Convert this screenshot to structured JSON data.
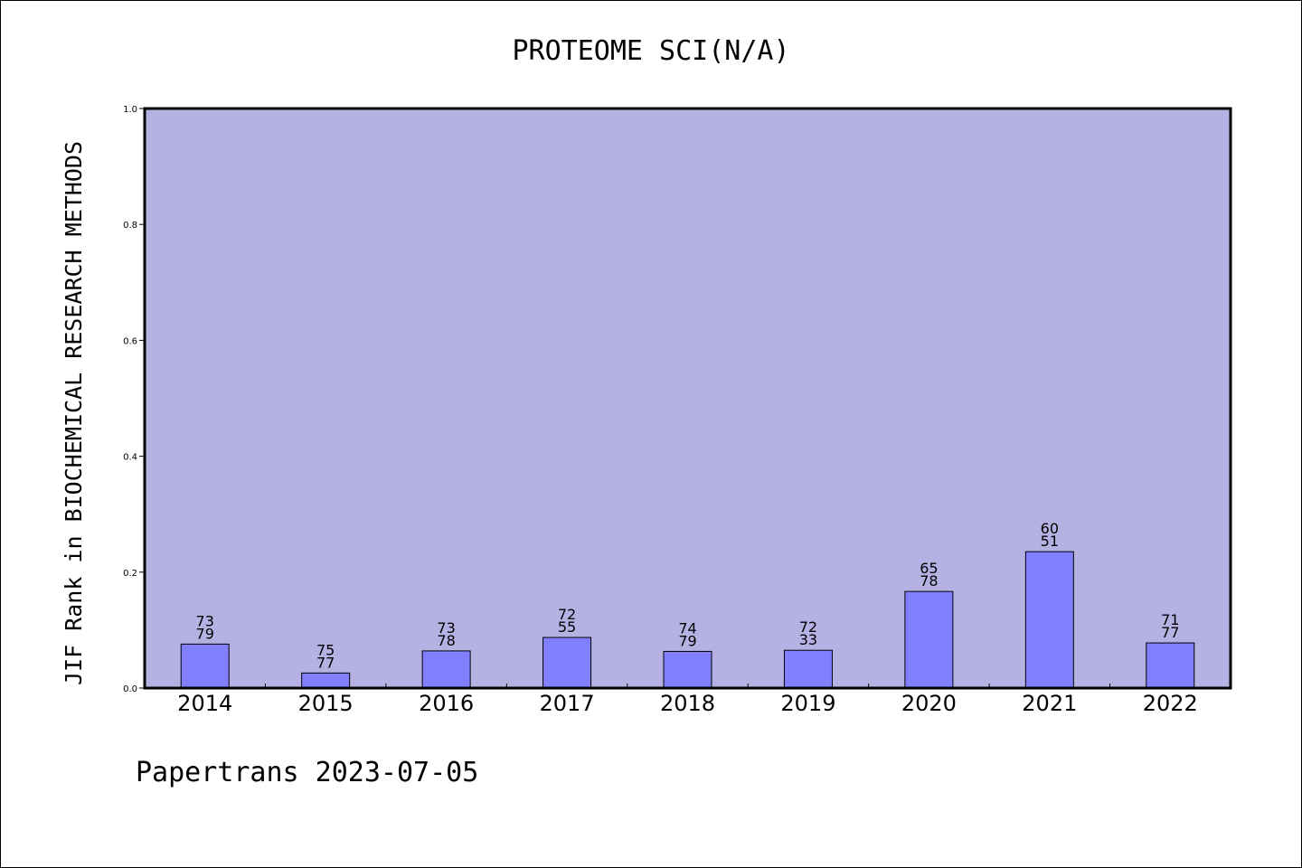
{
  "chart_data": {
    "type": "bar",
    "title": "PROTEOME SCI(N/A)",
    "xlabel": "",
    "ylabel": "JIF Rank in BIOCHEMICAL RESEARCH METHODS",
    "ylim": [
      0,
      1.0
    ],
    "yticks": [
      "0.0",
      "0.2",
      "0.4",
      "0.6",
      "0.8",
      "1.0"
    ],
    "categories": [
      "2014",
      "2015",
      "2016",
      "2017",
      "2018",
      "2019",
      "2020",
      "2021",
      "2022"
    ],
    "values": [
      0.0759,
      0.026,
      0.0641,
      0.0873,
      0.0633,
      0.0652,
      0.1667,
      0.2353,
      0.0779
    ],
    "labels_top": [
      "73",
      "75",
      "73",
      "72",
      "74",
      "72",
      "65",
      "60",
      "71"
    ],
    "labels_bottom": [
      "79",
      "77",
      "78",
      "55",
      "79",
      "33",
      "78",
      "51",
      "77"
    ],
    "grid": false,
    "legend": "none",
    "colors": {
      "plot_background": "#b6b1e3",
      "bar_fill": "#8080ff",
      "bar_stroke": "#000000"
    }
  },
  "footer": {
    "text": "Papertrans 2023-07-05"
  }
}
